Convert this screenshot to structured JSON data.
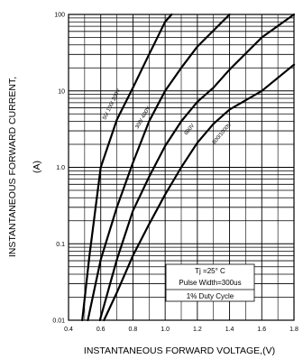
{
  "chart_data": {
    "type": "line",
    "title": "",
    "xlabel": "INSTANTANEOUS FORWARD VOLTAGE,(V)",
    "ylabel": "INSTANTANEOUS FORWARD CURRENT,",
    "ylabel_unit": "(A)",
    "x_scale": "linear",
    "y_scale": "log",
    "xlim": [
      0.4,
      1.8
    ],
    "ylim": [
      0.01,
      100
    ],
    "x_ticks": [
      "0.4",
      "0.6",
      "0.8",
      "1.0",
      "1.2",
      "1.4",
      "1.6",
      "1.8"
    ],
    "y_ticks": [
      "0.01",
      "0.1",
      "1.0",
      "10",
      "100"
    ],
    "grid": true,
    "series": [
      {
        "name": "50/ 100/ 200V",
        "points": [
          [
            0.485,
            0.01
          ],
          [
            0.53,
            0.07
          ],
          [
            0.6,
            1.0
          ],
          [
            0.7,
            4.2
          ],
          [
            0.8,
            11
          ],
          [
            0.9,
            30
          ],
          [
            1.0,
            80
          ],
          [
            1.04,
            100
          ]
        ]
      },
      {
        "name": "300/ 400V",
        "points": [
          [
            0.52,
            0.01
          ],
          [
            0.6,
            0.062
          ],
          [
            0.7,
            0.3
          ],
          [
            0.8,
            1.15
          ],
          [
            0.9,
            4.0
          ],
          [
            1.0,
            10
          ],
          [
            1.1,
            20
          ],
          [
            1.2,
            38
          ],
          [
            1.4,
            100
          ]
        ]
      },
      {
        "name": "600V",
        "points": [
          [
            0.595,
            0.01
          ],
          [
            0.7,
            0.062
          ],
          [
            0.8,
            0.27
          ],
          [
            0.9,
            0.75
          ],
          [
            1.0,
            1.9
          ],
          [
            1.1,
            4.0
          ],
          [
            1.2,
            7.2
          ],
          [
            1.3,
            11
          ],
          [
            1.4,
            19
          ],
          [
            1.6,
            50
          ],
          [
            1.8,
            100
          ]
        ]
      },
      {
        "name": "800/1000V",
        "points": [
          [
            0.62,
            0.01
          ],
          [
            0.7,
            0.023
          ],
          [
            0.8,
            0.07
          ],
          [
            0.9,
            0.18
          ],
          [
            1.0,
            0.44
          ],
          [
            1.1,
            1.0
          ],
          [
            1.2,
            2.1
          ],
          [
            1.3,
            3.7
          ],
          [
            1.4,
            5.7
          ],
          [
            1.6,
            10
          ],
          [
            1.8,
            22
          ]
        ]
      }
    ],
    "annotation": {
      "lines": [
        "Tj =25° C",
        "Pulse Width=300us",
        "1% Duty Cycle"
      ]
    }
  }
}
